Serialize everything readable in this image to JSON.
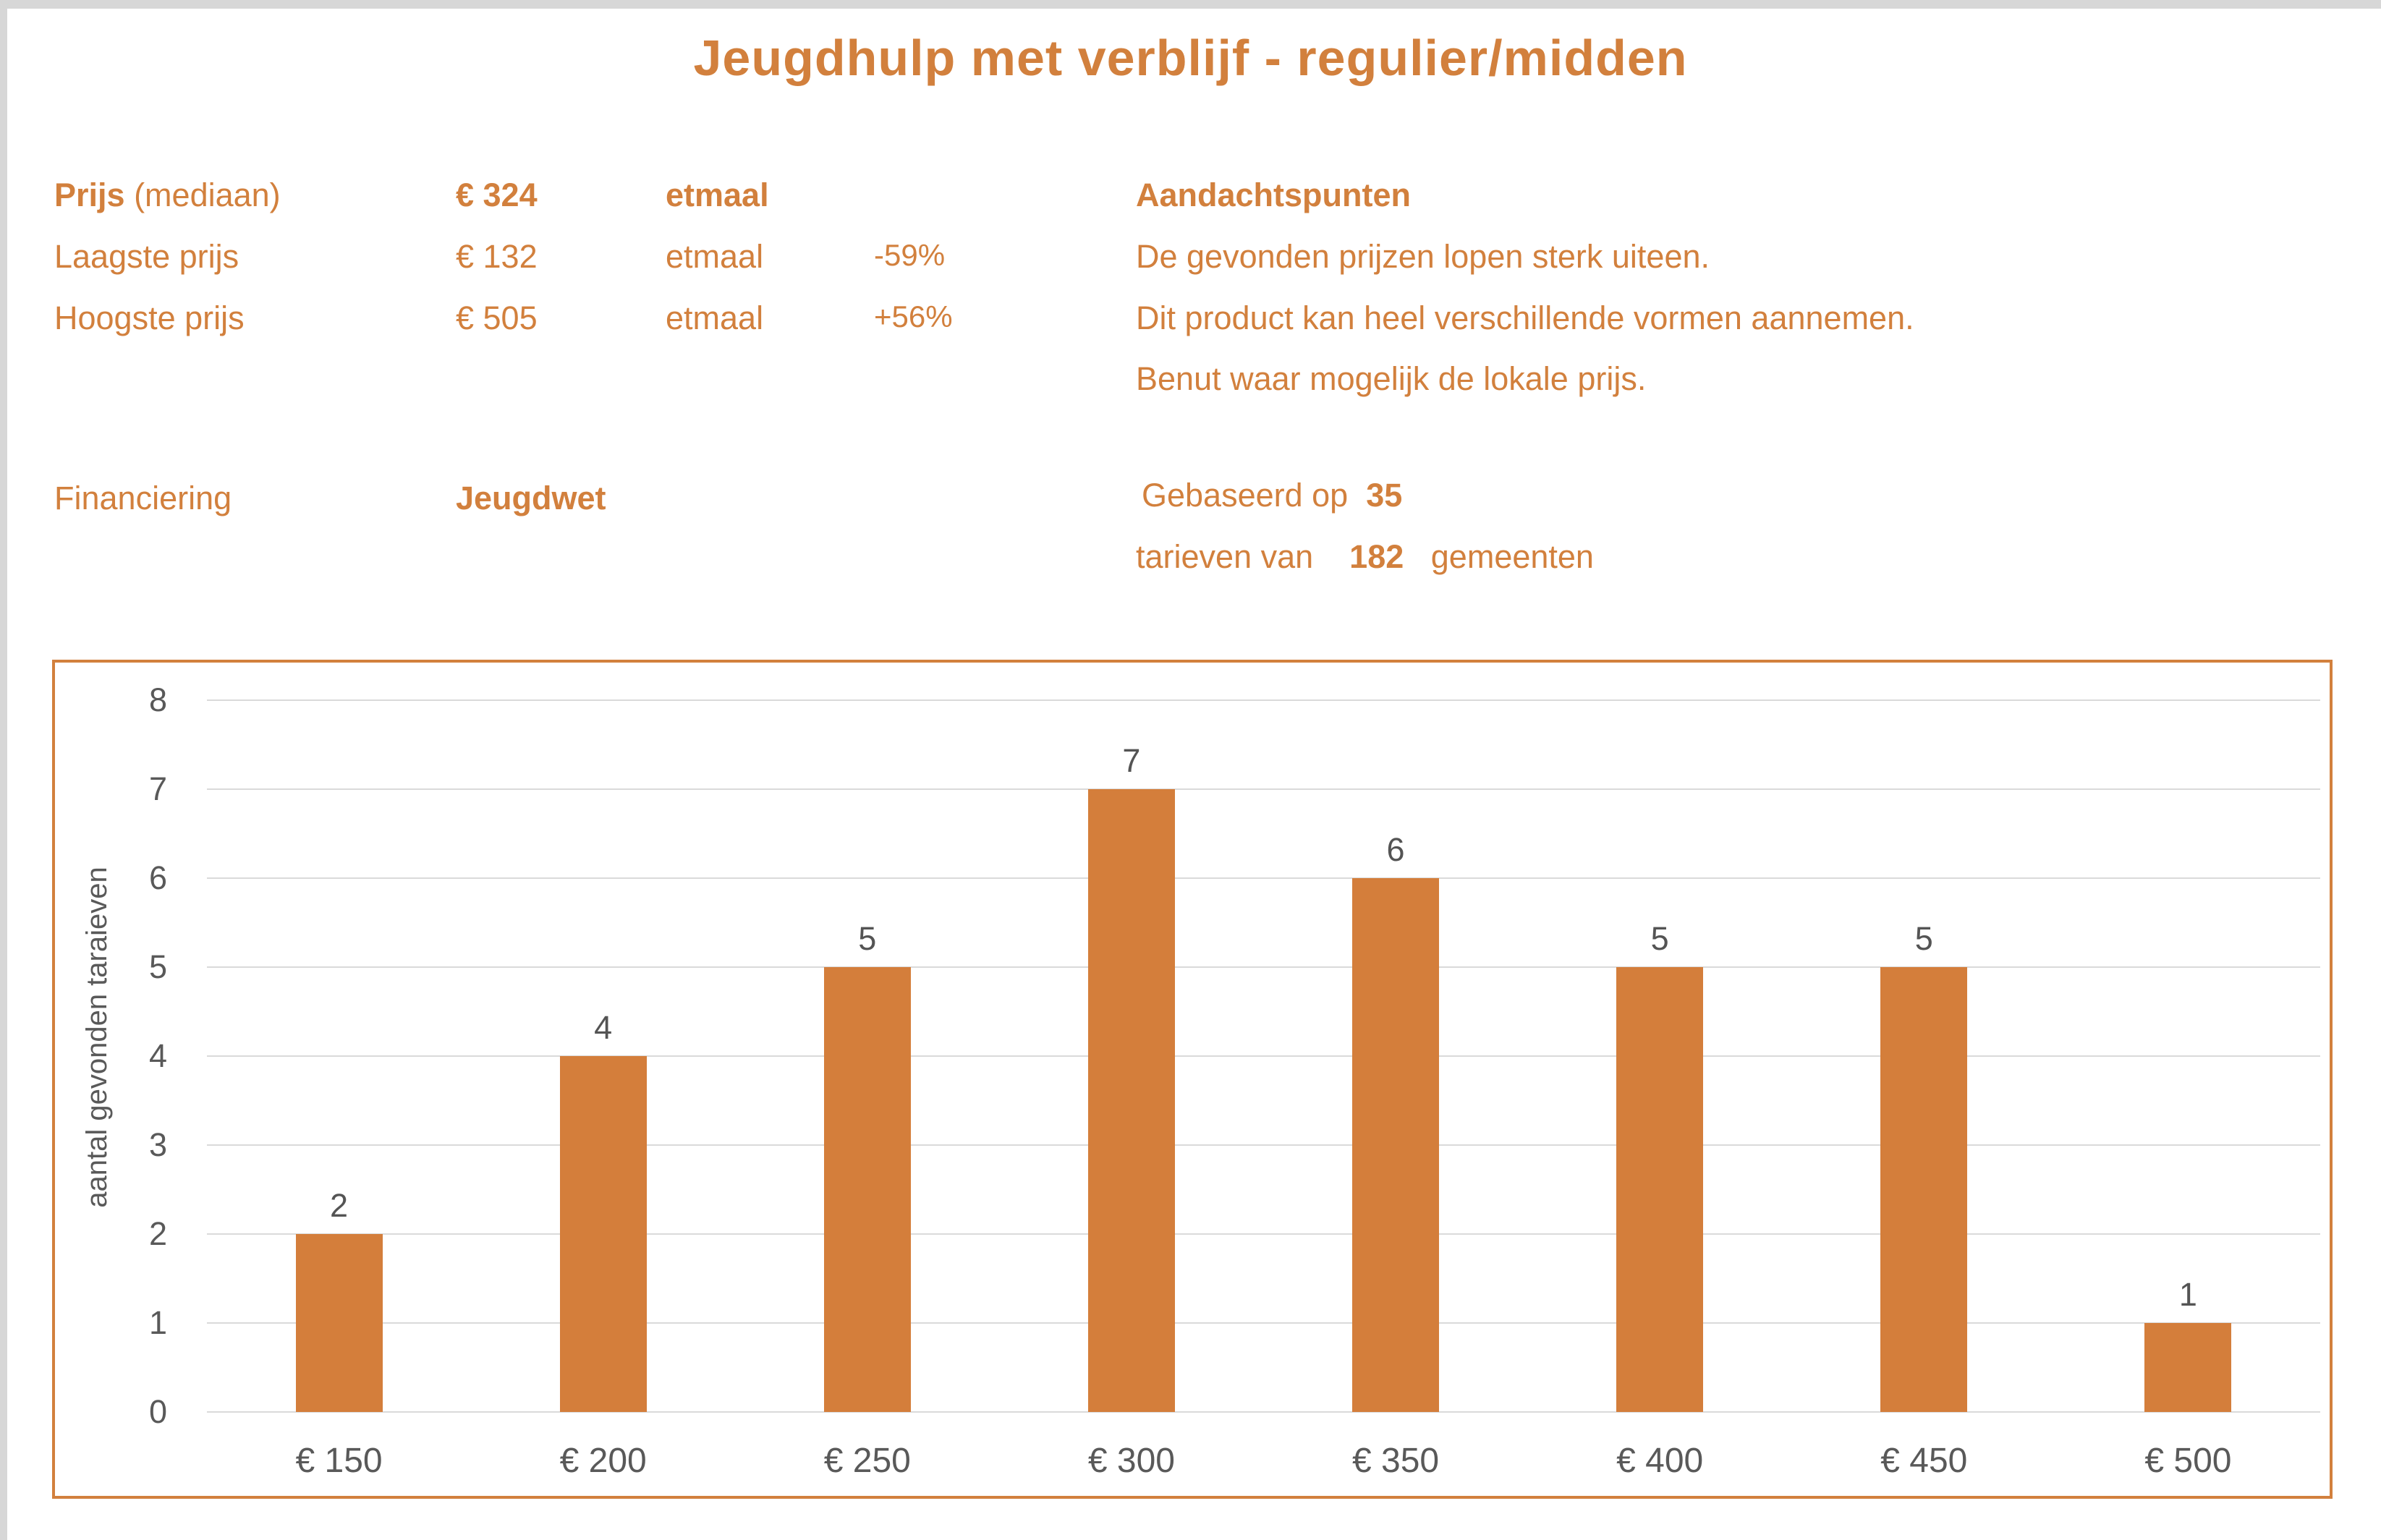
{
  "page": {
    "title": "Jeugdhulp met verblijf - regulier/midden"
  },
  "info": {
    "price": {
      "label_bold": "Prijs",
      "label_rest": " (mediaan)",
      "value": "€ 324",
      "unit": "etmaal"
    },
    "lowest": {
      "label": "Laagste prijs",
      "value": "€ 132",
      "unit": "etmaal",
      "delta": "-59%"
    },
    "highest": {
      "label": "Hoogste prijs",
      "value": "€ 505",
      "unit": "etmaal",
      "delta": "+56%"
    },
    "financing": {
      "label": "Financiering",
      "value": "Jeugdwet"
    }
  },
  "attention": {
    "title": "Aandachtspunten",
    "line1": "De gevonden prijzen lopen sterk uiteen.",
    "line2": "Dit product kan heel verschillende vormen aannemen.",
    "line3": "Benut waar mogelijk de lokale prijs."
  },
  "basis": {
    "line1_prefix": "Gebaseerd op",
    "line1_value": "35",
    "line2_prefix": "tarieven van",
    "line2_value": "182",
    "line2_suffix": "gemeenten"
  },
  "chart_data": {
    "type": "bar",
    "categories": [
      "€ 150",
      "€ 200",
      "€ 250",
      "€ 300",
      "€ 350",
      "€ 400",
      "€ 450",
      "€ 500"
    ],
    "values": [
      2,
      4,
      5,
      7,
      6,
      5,
      5,
      1
    ],
    "title": "",
    "xlabel": "",
    "ylabel": "aantal gevonden taraieven",
    "ylim": [
      0,
      8
    ],
    "yticks": [
      0,
      1,
      2,
      3,
      4,
      5,
      6,
      7,
      8
    ],
    "grid": true,
    "legend": "none",
    "bar_color": "#D47E3B"
  },
  "colors": {
    "accent_orange": "#D2803D",
    "bar_orange": "#D47E3B",
    "axis_text_grey": "#595959",
    "gridline_grey": "#DADADA",
    "page_edge_grey": "#D7D7D7"
  }
}
